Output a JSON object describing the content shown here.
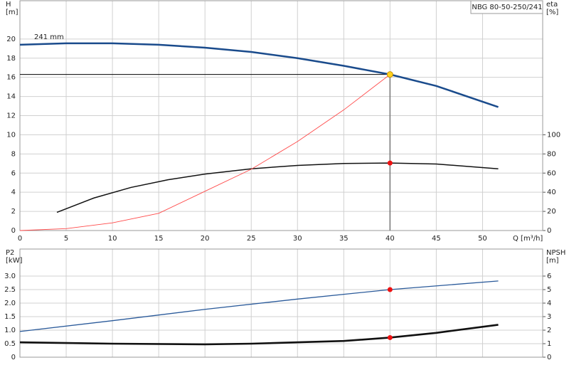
{
  "chart_data": [
    {
      "type": "line",
      "title": "NBG 80-50-250/241",
      "annotation": "241 mm",
      "ylabel": "H",
      "yunit": "[m]",
      "y2label": "eta",
      "y2unit": "[%]",
      "xlabel": "Q [m³/h]",
      "xlim": [
        0,
        56.5
      ],
      "xticks": [
        0,
        5,
        10,
        15,
        20,
        25,
        30,
        35,
        40,
        45,
        50
      ],
      "ylim": [
        0,
        24
      ],
      "yticks": [
        0,
        2,
        4,
        6,
        8,
        10,
        12,
        14,
        16,
        18,
        20
      ],
      "y2lim": [
        0,
        240
      ],
      "y2ticks": [
        0,
        20,
        40,
        60,
        80,
        100
      ],
      "grid": true,
      "series": [
        {
          "color": "#1a4b8c",
          "axis": "y",
          "x": [
            0,
            5,
            10,
            15,
            20,
            25,
            30,
            35,
            40,
            45,
            51.7
          ],
          "values": [
            19.4,
            19.55,
            19.55,
            19.4,
            19.1,
            18.65,
            18.0,
            17.2,
            16.3,
            15.1,
            12.9
          ]
        },
        {
          "color": "#111111",
          "axis": "y2",
          "x": [
            4,
            8,
            12,
            16,
            20,
            25,
            30,
            35,
            40,
            45,
            51.7
          ],
          "values": [
            19,
            34,
            45,
            53,
            59,
            64.5,
            68,
            70,
            70.5,
            69.5,
            64.5
          ]
        },
        {
          "color": "#ff4a4a",
          "axis": "y",
          "x": [
            0,
            5,
            10,
            15,
            20,
            25,
            30,
            35,
            40
          ],
          "values": [
            0,
            0.2,
            0.8,
            1.8,
            4.1,
            6.4,
            9.3,
            12.6,
            16.3
          ]
        }
      ],
      "markers": [
        {
          "x": 40,
          "y": 16.3,
          "axis": "y",
          "color": "#ffd21f",
          "guide": true
        },
        {
          "x": 40,
          "y": 70.5,
          "axis": "y2",
          "color": "#ee1111"
        }
      ]
    },
    {
      "type": "line",
      "ylabel": "P2",
      "yunit": "[kW]",
      "y2label": "NPSH",
      "y2unit": "[m]",
      "xlim": [
        0,
        56.5
      ],
      "ylim": [
        0,
        4
      ],
      "yticks": [
        0,
        0.5,
        {
          "value": 1,
          "label": "1.0"
        },
        1.5,
        {
          "value": 2,
          "label": "2.0"
        },
        2.5,
        {
          "value": 3,
          "label": "3.0"
        }
      ],
      "y2lim": [
        0,
        8
      ],
      "y2ticks": [
        0,
        1,
        2,
        3,
        4,
        5,
        6
      ],
      "grid": true,
      "series": [
        {
          "color": "#2a5a9a",
          "axis": "y",
          "x": [
            0,
            10,
            20,
            30,
            40,
            51.7
          ],
          "values": [
            0.95,
            1.35,
            1.77,
            2.15,
            2.5,
            2.82
          ]
        },
        {
          "color": "#111111",
          "axis": "y2",
          "x": [
            0,
            10,
            20,
            25,
            30,
            35,
            40,
            45,
            51.7
          ],
          "values": [
            1.1,
            1.0,
            0.95,
            1.0,
            1.1,
            1.2,
            1.45,
            1.8,
            2.4
          ]
        }
      ],
      "markers": [
        {
          "x": 40,
          "y": 2.5,
          "axis": "y",
          "color": "#ee1111"
        },
        {
          "x": 40,
          "y": 1.45,
          "axis": "y2",
          "color": "#ee1111"
        }
      ]
    }
  ]
}
